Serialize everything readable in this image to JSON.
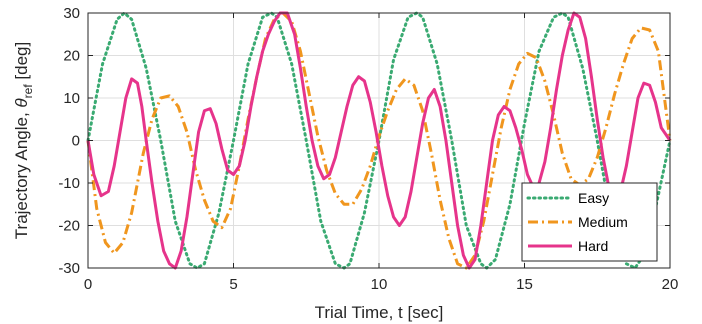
{
  "chart_data": {
    "type": "line",
    "xlabel": "Trial Time, t [sec]",
    "ylabel": {
      "main": "Trajectory Angle, ",
      "symbol": "θ",
      "subscript": "ref",
      "unit": " [deg]"
    },
    "xlim": [
      0,
      20
    ],
    "ylim": [
      -30,
      30
    ],
    "xticks": [
      0,
      5,
      10,
      15,
      20
    ],
    "yticks": [
      -30,
      -20,
      -10,
      0,
      10,
      20,
      30
    ],
    "grid": true,
    "legend_position": "bottom-right",
    "series": [
      {
        "name": "Easy",
        "color": "#3aaa72",
        "style": "dotted",
        "x": [
          0,
          0.5,
          1.0,
          1.25,
          1.5,
          2.0,
          2.5,
          3.0,
          3.5,
          3.75,
          4.0,
          4.5,
          5.0,
          5.5,
          6.0,
          6.3,
          6.5,
          7.0,
          7.5,
          8.0,
          8.5,
          8.8,
          9.0,
          9.5,
          10.0,
          10.5,
          11.0,
          11.3,
          11.5,
          12.0,
          12.5,
          13.0,
          13.5,
          13.7,
          14.0,
          14.5,
          15.0,
          15.5,
          16.0,
          16.3,
          16.5,
          17.0,
          17.5,
          18.0,
          18.5,
          18.8,
          19.0,
          19.5,
          20.0
        ],
        "y": [
          0,
          18,
          28.5,
          30,
          28.5,
          17,
          0,
          -19,
          -29,
          -30,
          -29,
          -17,
          0,
          18,
          29,
          30,
          29,
          18,
          0,
          -19,
          -29,
          -30,
          -29,
          -17,
          0,
          19,
          29,
          30,
          29,
          18,
          0,
          -20,
          -29,
          -30,
          -28,
          -15,
          4,
          21,
          29,
          30,
          29,
          17,
          0,
          -19,
          -29,
          -30,
          -28,
          -16,
          0
        ]
      },
      {
        "name": "Medium",
        "color": "#f0961e",
        "style": "dashdot",
        "x": [
          0,
          0.3,
          0.6,
          0.9,
          1.2,
          1.5,
          1.9,
          2.2,
          2.5,
          2.8,
          3.1,
          3.4,
          3.7,
          4.0,
          4.3,
          4.6,
          4.9,
          5.2,
          5.5,
          5.8,
          6.1,
          6.4,
          6.7,
          7.0,
          7.3,
          7.6,
          7.9,
          8.2,
          8.5,
          8.8,
          9.1,
          9.4,
          9.7,
          10.0,
          10.3,
          10.6,
          10.9,
          11.2,
          11.5,
          11.8,
          12.1,
          12.4,
          12.7,
          13.0,
          13.3,
          13.6,
          13.9,
          14.2,
          14.5,
          14.8,
          15.1,
          15.4,
          15.7,
          16.0,
          16.3,
          16.6,
          16.9,
          17.2,
          17.5,
          17.8,
          18.1,
          18.4,
          18.7,
          19.0,
          19.3,
          19.6,
          20.0
        ],
        "y": [
          0,
          -16,
          -24,
          -26.5,
          -24,
          -17,
          -3,
          5,
          10,
          10.5,
          8,
          2,
          -7,
          -14,
          -19,
          -20.5,
          -16,
          -6,
          5,
          15,
          24,
          28.5,
          30,
          28,
          21,
          11,
          1,
          -7,
          -12.5,
          -15,
          -15,
          -11.5,
          -6,
          1,
          7,
          12,
          14.5,
          13,
          7,
          -3,
          -14,
          -23,
          -29,
          -30,
          -27,
          -19,
          -8,
          3,
          12,
          18,
          20.5,
          19.5,
          14,
          6,
          -3,
          -9,
          -10.5,
          -9,
          -4,
          3,
          11,
          18,
          24,
          26.5,
          26,
          21,
          0
        ]
      },
      {
        "name": "Hard",
        "color": "#e6348b",
        "style": "solid",
        "x": [
          0,
          0.2,
          0.45,
          0.7,
          0.9,
          1.1,
          1.3,
          1.5,
          1.7,
          1.85,
          2.0,
          2.2,
          2.4,
          2.6,
          2.8,
          3.0,
          3.2,
          3.4,
          3.6,
          3.8,
          4.0,
          4.2,
          4.4,
          4.6,
          4.8,
          5.0,
          5.2,
          5.4,
          5.6,
          5.8,
          6.0,
          6.2,
          6.4,
          6.6,
          6.85,
          7.1,
          7.3,
          7.5,
          7.7,
          7.9,
          8.1,
          8.3,
          8.5,
          8.7,
          8.9,
          9.1,
          9.3,
          9.5,
          9.7,
          9.9,
          10.1,
          10.3,
          10.5,
          10.7,
          10.9,
          11.1,
          11.3,
          11.5,
          11.7,
          11.9,
          12.1,
          12.3,
          12.5,
          12.7,
          12.9,
          13.1,
          13.3,
          13.5,
          13.7,
          13.9,
          14.1,
          14.3,
          14.5,
          14.7,
          14.9,
          15.1,
          15.3,
          15.5,
          15.7,
          15.9,
          16.1,
          16.3,
          16.5,
          16.7,
          16.9,
          17.1,
          17.3,
          17.5,
          17.7,
          17.9,
          18.1,
          18.3,
          18.5,
          18.7,
          18.9,
          19.1,
          19.3,
          19.5,
          19.7,
          20.0
        ],
        "y": [
          0,
          -8,
          -13,
          -12,
          -6,
          2,
          10,
          14.5,
          13.5,
          8,
          0,
          -10,
          -19,
          -26,
          -29,
          -30,
          -26,
          -18,
          -8,
          2,
          7,
          7.5,
          4,
          -2,
          -7,
          -8,
          -6,
          0,
          8,
          15,
          21,
          25,
          28,
          30,
          30,
          25,
          17,
          8,
          0,
          -6,
          -9,
          -8,
          -4,
          2,
          8,
          13,
          15,
          14,
          9,
          2,
          -6,
          -13,
          -18,
          -20,
          -18,
          -12,
          -4,
          4,
          10,
          12,
          8,
          0,
          -10,
          -20,
          -27,
          -30,
          -28,
          -20,
          -10,
          0,
          6,
          8,
          7,
          3,
          -2,
          -8,
          -11,
          -10,
          -5,
          3,
          12,
          20,
          26,
          30,
          29,
          24,
          15,
          5,
          -4,
          -11,
          -14,
          -12,
          -6,
          2,
          10,
          13.5,
          13,
          9,
          3,
          0
        ]
      }
    ]
  }
}
